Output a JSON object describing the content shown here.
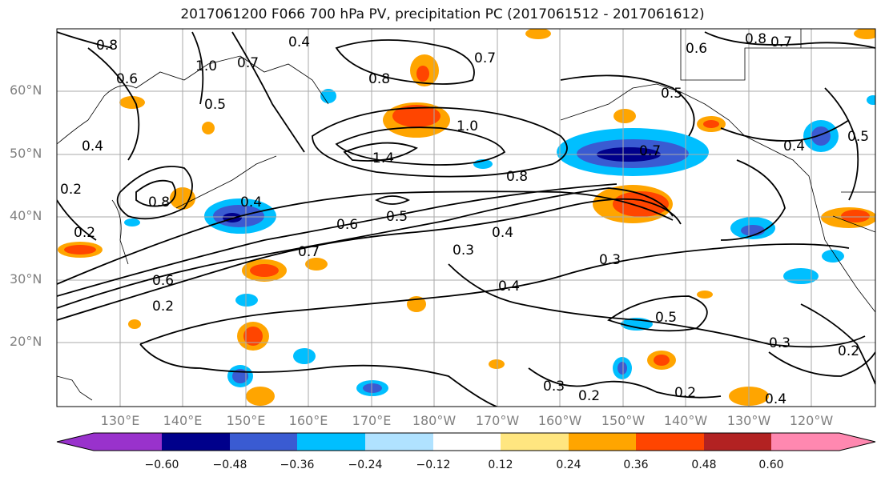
{
  "title": "2017061200 F066 700 hPa PV, precipitation PC (2017061512 - 2017061612)",
  "lat_labels": [
    "60°N",
    "50°N",
    "40°N",
    "30°N",
    "20°N"
  ],
  "lon_labels": [
    "130°E",
    "140°E",
    "150°E",
    "160°E",
    "170°E",
    "180°W",
    "170°W",
    "160°W",
    "150°W",
    "140°W",
    "130°W",
    "120°W"
  ],
  "colorbar": {
    "labels": [
      "−0.60",
      "−0.48",
      "−0.36",
      "−0.24",
      "−0.12",
      "0.12",
      "0.24",
      "0.36",
      "0.48",
      "0.60"
    ],
    "colors": [
      "#9932cc",
      "#00008b",
      "#3a5bd2",
      "#00bfff",
      "#b0e2ff",
      "#ffffff",
      "#ffe680",
      "#ffa500",
      "#ff4500",
      "#b22222",
      "#ff88b0"
    ]
  },
  "contour_labels": [
    {
      "text": "0.8"
    },
    {
      "text": "0.6"
    },
    {
      "text": "1.0"
    },
    {
      "text": "0.7"
    },
    {
      "text": "0.4"
    },
    {
      "text": "0.8"
    },
    {
      "text": "0.7"
    },
    {
      "text": "0.5"
    },
    {
      "text": "1.0"
    },
    {
      "text": "1.4"
    },
    {
      "text": "0.8"
    },
    {
      "text": "0.5"
    },
    {
      "text": "0.7"
    },
    {
      "text": "0.8"
    },
    {
      "text": "0.7"
    },
    {
      "text": "0.6"
    },
    {
      "text": "0.4"
    },
    {
      "text": "0.5"
    },
    {
      "text": "0.4"
    },
    {
      "text": "0.2"
    },
    {
      "text": "0.8"
    },
    {
      "text": "0.2"
    },
    {
      "text": "0.4"
    },
    {
      "text": "0.6"
    },
    {
      "text": "0.5"
    },
    {
      "text": "0.4"
    },
    {
      "text": "0.3"
    },
    {
      "text": "0.7"
    },
    {
      "text": "0.3"
    },
    {
      "text": "0.6"
    },
    {
      "text": "0.2"
    },
    {
      "text": "0.4"
    },
    {
      "text": "0.5"
    },
    {
      "text": "0.3"
    },
    {
      "text": "0.3"
    },
    {
      "text": "0.2"
    },
    {
      "text": "0.2"
    },
    {
      "text": "0.4"
    },
    {
      "text": "0.2"
    }
  ]
}
